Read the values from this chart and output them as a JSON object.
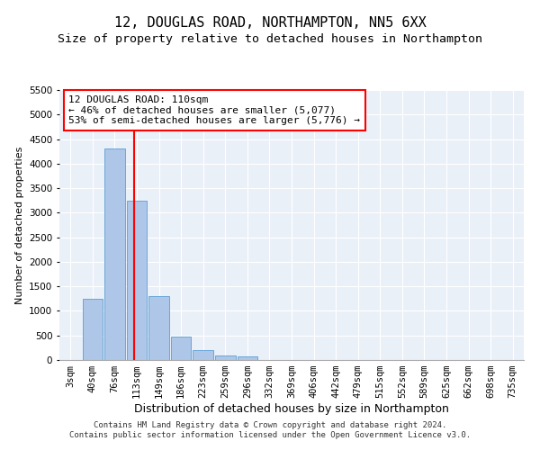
{
  "title1": "12, DOUGLAS ROAD, NORTHAMPTON, NN5 6XX",
  "title2": "Size of property relative to detached houses in Northampton",
  "xlabel": "Distribution of detached houses by size in Northampton",
  "ylabel": "Number of detached properties",
  "annotation_title": "12 DOUGLAS ROAD: 110sqm",
  "annotation_line1": "← 46% of detached houses are smaller (5,077)",
  "annotation_line2": "53% of semi-detached houses are larger (5,776) →",
  "footnote1": "Contains HM Land Registry data © Crown copyright and database right 2024.",
  "footnote2": "Contains public sector information licensed under the Open Government Licence v3.0.",
  "bar_categories": [
    "3sqm",
    "40sqm",
    "76sqm",
    "113sqm",
    "149sqm",
    "186sqm",
    "223sqm",
    "259sqm",
    "296sqm",
    "332sqm",
    "369sqm",
    "406sqm",
    "442sqm",
    "479sqm",
    "515sqm",
    "552sqm",
    "589sqm",
    "625sqm",
    "662sqm",
    "698sqm",
    "735sqm"
  ],
  "bar_values": [
    0,
    1250,
    4300,
    3250,
    1300,
    480,
    200,
    100,
    70,
    0,
    0,
    0,
    0,
    0,
    0,
    0,
    0,
    0,
    0,
    0,
    0
  ],
  "bar_color": "#aec6e8",
  "bar_edge_color": "#5a9fd4",
  "vline_color": "red",
  "annotation_box_color": "red",
  "background_color": "#eaf0f8",
  "ylim_max": 5500,
  "yticks": [
    0,
    500,
    1000,
    1500,
    2000,
    2500,
    3000,
    3500,
    4000,
    4500,
    5000,
    5500
  ],
  "grid_color": "#ffffff",
  "title1_fontsize": 11,
  "title2_fontsize": 9.5,
  "xlabel_fontsize": 9,
  "ylabel_fontsize": 8,
  "tick_fontsize": 7.5,
  "annotation_fontsize": 8,
  "footnote_fontsize": 6.5
}
